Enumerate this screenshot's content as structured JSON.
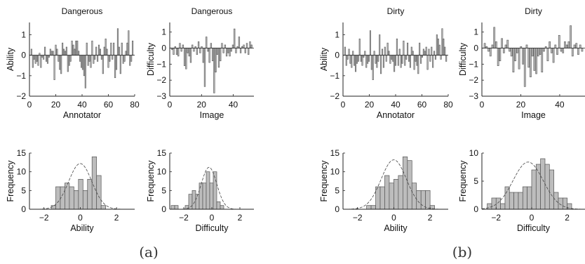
{
  "captions": [
    "(a)",
    "(b)"
  ],
  "chart_data": [
    {
      "type": "bar",
      "title": "Dangerous",
      "xlabel": "Annotator",
      "ylabel": "Ability",
      "xlim": [
        0,
        80
      ],
      "ylim": [
        -2,
        1.6
      ],
      "xticks": [
        0,
        20,
        40,
        60,
        80
      ],
      "yticks": [
        -2,
        -1,
        0,
        1
      ],
      "values": [
        0.3,
        -0.6,
        -0.2,
        -0.4,
        -0.3,
        -0.5,
        0.1,
        -0.6,
        -0.1,
        -0.2,
        0.4,
        -0.3,
        -0.4,
        -0.1,
        0.3,
        0.2,
        0.2,
        -1.2,
        0.5,
        0.3,
        -0.3,
        -0.7,
        -0.9,
        0.6,
        0.3,
        0.2,
        0.4,
        -0.8,
        -0.5,
        -0.3,
        0.7,
        0.5,
        0.3,
        0.7,
        0.7,
        0.2,
        -0.3,
        -0.6,
        -0.7,
        -1.0,
        -1.6,
        0.6,
        -0.5,
        -0.3,
        -0.6,
        0.7,
        -0.4,
        -0.2,
        0.4,
        -0.3,
        0.5,
        0.3,
        -0.2,
        -0.9,
        0.4,
        0.8,
        0.3,
        -0.6,
        -0.3,
        0.6,
        -0.2,
        0.6,
        -1.1,
        -0.7,
        1.3,
        0.4,
        -0.9,
        0.6,
        -0.4,
        -0.3,
        0.2,
        0.6,
        1.2,
        -0.5,
        -0.3,
        0.7
      ]
    },
    {
      "type": "bar",
      "title": "Dangerous",
      "xlabel": "Image",
      "ylabel": "Difficulty",
      "xlim": [
        0,
        53
      ],
      "ylim": [
        -3,
        1.6
      ],
      "xticks": [
        0,
        20,
        40
      ],
      "yticks": [
        -3,
        -2,
        -1,
        0,
        1
      ],
      "values": [
        -0.1,
        -0.4,
        0.1,
        -0.4,
        -0.5,
        0.3,
        -0.2,
        0.2,
        -1.1,
        -1.3,
        -0.3,
        -0.5,
        -0.9,
        0.2,
        -0.2,
        0.1,
        -0.4,
        0.4,
        -0.3,
        0.1,
        -0.9,
        -2.4,
        0.7,
        -0.2,
        -0.9,
        0.3,
        -0.8,
        -2.8,
        -1.5,
        -0.4,
        -1.2,
        -0.8,
        0.3,
        -0.3,
        0.2,
        -0.5,
        -0.3,
        -0.5,
        -0.2,
        0.2,
        1.2,
        -0.3,
        0.1,
        0.7,
        -0.3,
        0.1,
        0.2,
        -0.3,
        0.3,
        -0.4,
        0.4,
        0.2
      ]
    },
    {
      "type": "bar",
      "title": "Dirty",
      "xlabel": "Annotator",
      "ylabel": "Ability",
      "xlim": [
        0,
        80
      ],
      "ylim": [
        -2,
        1.6
      ],
      "xticks": [
        0,
        20,
        40,
        60,
        80
      ],
      "yticks": [
        -2,
        -1,
        0,
        1
      ],
      "values": [
        0.4,
        -0.5,
        -0.2,
        0.3,
        -0.4,
        -0.6,
        0.2,
        -0.5,
        -0.8,
        -0.4,
        -0.3,
        0.8,
        -0.3,
        -0.5,
        -0.1,
        0.2,
        -0.6,
        -0.4,
        -0.3,
        1.2,
        -0.7,
        -1.2,
        0.2,
        -0.4,
        -0.6,
        -0.3,
        1.0,
        -0.9,
        0.3,
        -0.6,
        0.4,
        -0.3,
        0.6,
        0.2,
        -0.4,
        -0.2,
        -0.3,
        -0.8,
        -0.5,
        0.8,
        -0.5,
        0.3,
        -0.6,
        -0.4,
        0.7,
        -0.5,
        -0.2,
        0.6,
        -0.3,
        -0.6,
        0.4,
        0.2,
        -0.7,
        -0.3,
        -0.5,
        -0.9,
        0.6,
        -0.4,
        -0.1,
        0.3,
        0.2,
        0.4,
        -0.7,
        0.3,
        -0.3,
        0.4,
        -0.6,
        0.2,
        -0.2,
        1.0,
        0.8,
        0.5,
        -0.2,
        1.3,
        0.8,
        0.4,
        -0.3
      ]
    },
    {
      "type": "bar",
      "title": "Dirty",
      "xlabel": "Image",
      "ylabel": "Difficulty",
      "xlim": [
        0,
        53
      ],
      "ylim": [
        -3,
        1.6
      ],
      "xticks": [
        0,
        20,
        40
      ],
      "yticks": [
        -3,
        -2,
        -1,
        0,
        1
      ],
      "values": [
        0.3,
        0.1,
        -0.2,
        -0.5,
        0.2,
        1.3,
        0.4,
        -1.1,
        -0.8,
        0.6,
        -0.3,
        0.2,
        0.5,
        -0.2,
        -0.5,
        -1.5,
        -0.8,
        -0.3,
        -1.3,
        0.1,
        -1.0,
        -2.4,
        0.2,
        -1.2,
        -1.8,
        -0.5,
        -1.4,
        -1.6,
        -0.5,
        -0.4,
        -1.5,
        -0.2,
        0.1,
        -0.8,
        0.4,
        -0.3,
        -0.9,
        0.2,
        -0.4,
        0.8,
        -0.2,
        -0.3,
        0.4,
        0.2,
        0.4,
        1.4,
        -0.5,
        0.2,
        0.3,
        -0.4,
        0.2,
        -0.2
      ]
    },
    {
      "type": "bar",
      "subtype": "histogram",
      "xlabel": "Ability",
      "ylabel": "Frequency",
      "xlim": [
        -2.8,
        3.0
      ],
      "ylim": [
        0,
        15
      ],
      "xticks": [
        -2,
        0,
        2
      ],
      "yticks": [
        0,
        5,
        10,
        15
      ],
      "bin_width": 0.25,
      "bin_start": -1.6,
      "values": [
        1,
        6,
        6,
        7,
        6,
        5,
        8,
        5,
        8,
        14,
        9,
        1
      ],
      "fit_curve": {
        "mu": 0.0,
        "sigma": 0.64,
        "peak": 12.2
      }
    },
    {
      "type": "bar",
      "subtype": "histogram",
      "xlabel": "Difficulty",
      "ylabel": "Frequency",
      "xlim": [
        -3.0,
        3.0
      ],
      "ylim": [
        0,
        15
      ],
      "xticks": [
        -2,
        0,
        2
      ],
      "yticks": [
        0,
        5,
        10,
        15
      ],
      "bin_width": 0.25,
      "bin_start": -2.9,
      "values": [
        1,
        1,
        0,
        0,
        1,
        4,
        5,
        4,
        7,
        7,
        10,
        7,
        10,
        2,
        1
      ],
      "fit_curve": {
        "mu": -0.2,
        "sigma": 0.55,
        "peak": 11.2
      }
    },
    {
      "type": "bar",
      "subtype": "histogram",
      "xlabel": "Ability",
      "ylabel": "Frequency",
      "xlim": [
        -2.8,
        3.0
      ],
      "ylim": [
        0,
        15
      ],
      "xticks": [
        -2,
        0,
        2
      ],
      "yticks": [
        0,
        5,
        10,
        15
      ],
      "bin_width": 0.25,
      "bin_start": -1.5,
      "values": [
        1,
        1,
        6,
        6,
        9,
        7,
        8,
        9,
        14,
        13,
        7,
        5,
        5,
        5,
        1
      ],
      "fit_curve": {
        "mu": 0.0,
        "sigma": 0.7,
        "peak": 13.2
      }
    },
    {
      "type": "bar",
      "subtype": "histogram",
      "xlabel": "Difficulty",
      "ylabel": "Frequency",
      "xlim": [
        -2.8,
        3.0
      ],
      "ylim": [
        0,
        10
      ],
      "xticks": [
        -2,
        0,
        2
      ],
      "yticks": [
        0,
        5,
        10
      ],
      "bin_width": 0.25,
      "bin_start": -2.5,
      "values": [
        1,
        2,
        2,
        1,
        4,
        3,
        3,
        3,
        4,
        4,
        7,
        8,
        9,
        8,
        7,
        3,
        2,
        2,
        1
      ],
      "fit_curve": {
        "mu": -0.2,
        "sigma": 0.85,
        "peak": 8.4
      }
    }
  ]
}
